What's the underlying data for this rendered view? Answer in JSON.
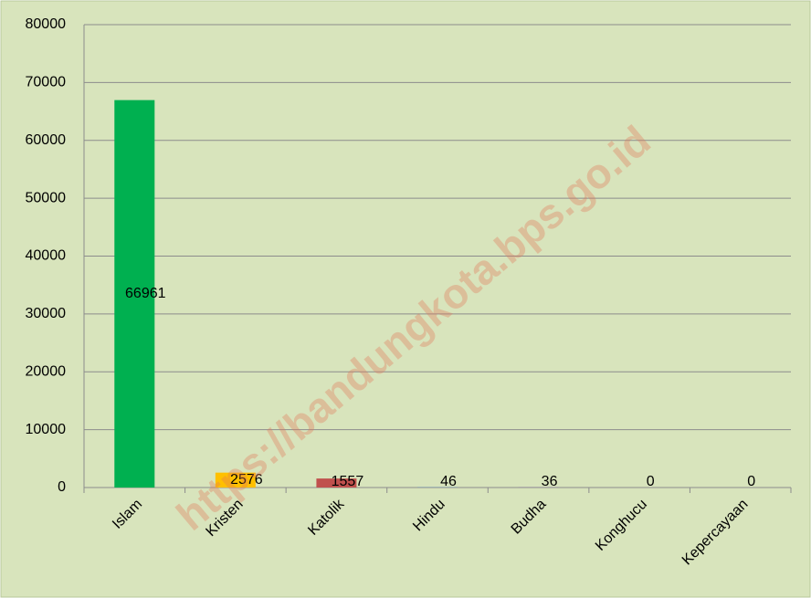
{
  "chart_data": {
    "type": "bar",
    "categories": [
      "Islam",
      "Kristen",
      "Katolik",
      "Hindu",
      "Budha",
      "Konghucu",
      "Kepercayaan"
    ],
    "values": [
      66961,
      2576,
      1557,
      46,
      36,
      0,
      0
    ],
    "colors": [
      "#00b050",
      "#ffc000",
      "#c0504d",
      "#4f81bd",
      "#8064a2",
      "#4bacc6",
      "#f79646"
    ],
    "ylim": [
      0,
      80000
    ],
    "yticks": [
      0,
      10000,
      20000,
      30000,
      40000,
      50000,
      60000,
      70000,
      80000
    ],
    "grid": true,
    "watermark": "https://bandungkota.bps.go.id"
  }
}
